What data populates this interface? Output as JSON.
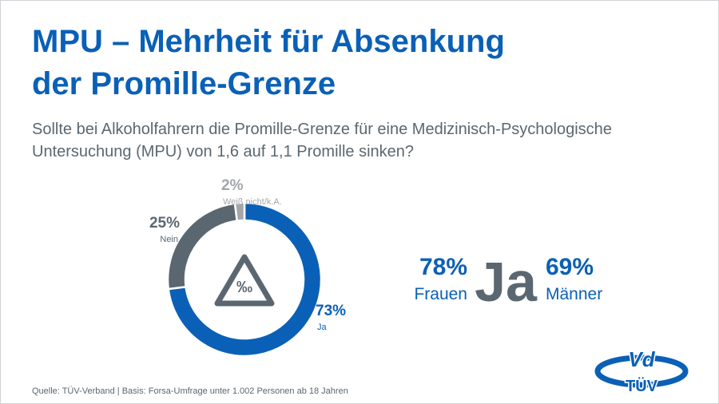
{
  "chart_data": {
    "type": "donut",
    "title": [
      "MPU – Mehrheit für Absenkung",
      "der Promille-Grenze"
    ],
    "subtitle": [
      "Sollte bei Alkoholfahrern die Promille-Grenze für eine Medizinisch-Psychologische",
      "Untersuchung (MPU) von 1,6 auf 1,1 Promille sinken?"
    ],
    "categories": [
      "Ja",
      "Nein",
      "Weiß nicht/k.A."
    ],
    "values": [
      73,
      25,
      2
    ],
    "value_labels": [
      "73%",
      "25%",
      "2%"
    ],
    "colors": [
      "#0a60b6",
      "#5b6770",
      "#a3a7ab"
    ],
    "center_icon": "‰",
    "breakdown": {
      "answer": "Ja",
      "groups": [
        {
          "name": "Frauen",
          "value": 78,
          "value_label": "78%"
        },
        {
          "name": "Männer",
          "value": 69,
          "value_label": "69%"
        }
      ]
    },
    "source": "Quelle: TÜV-Verband | Basis: Forsa-Umfrage unter 1.002 Personen ab 18 Jahren",
    "logo": [
      "Vd",
      "TÜV"
    ]
  }
}
